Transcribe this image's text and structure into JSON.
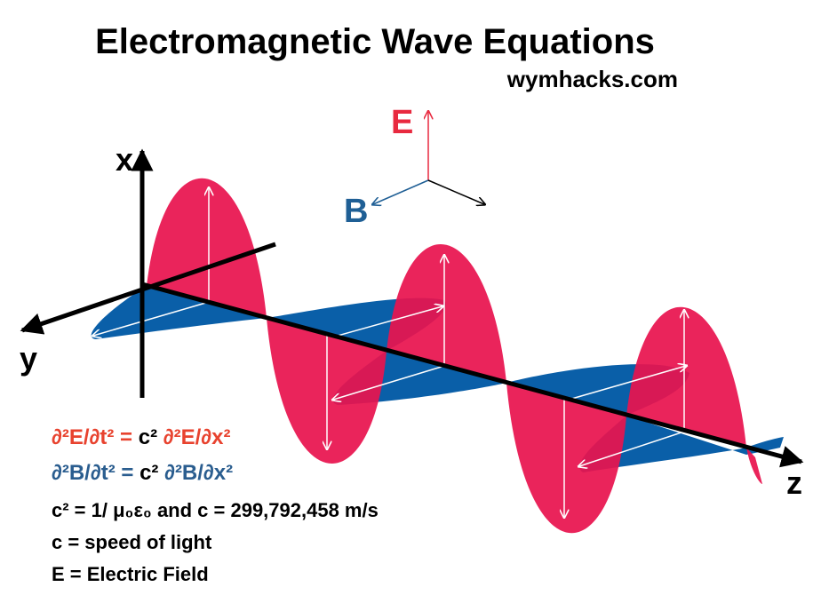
{
  "header": {
    "title": "Electromagnetic Wave Equations",
    "source": "wymhacks.com"
  },
  "legend": {
    "e_label": "E",
    "b_label": "B"
  },
  "axes": {
    "x": "x",
    "y": "y",
    "z": "z"
  },
  "equations": [
    {
      "lhs": "∂²E/∂t² =",
      "mid": "c²",
      "rhs": "∂²E/∂x²"
    },
    {
      "lhs": "∂²B/∂t² =",
      "mid": "c²",
      "rhs": "∂²B/∂x²"
    }
  ],
  "notes": [
    "c² = 1/ μ₀ε₀ and c = 299,792,458 m/s",
    "c = speed of light",
    "E = Electric Field"
  ]
}
